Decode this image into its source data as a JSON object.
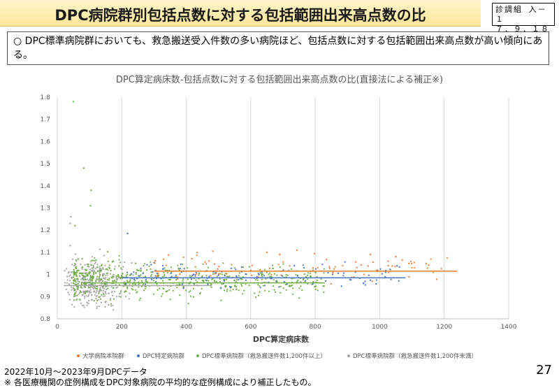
{
  "header": {
    "title": "DPC病院群別包括点数に対する包括範囲出来高点数の比",
    "doc_line1": "診調組 入－１",
    "doc_line2": "７．９．１８"
  },
  "summary": {
    "marker": "○",
    "text": "DPC標準病院群においても、救急搬送受入件数の多い病院ほど、包括点数に対する包括範囲出来高点数が高い傾向にある。"
  },
  "chart_data": {
    "type": "scatter",
    "title": "DPC算定病床数-包括点数に対する包括範囲出来高点数の比(直接法による補正※)",
    "xlabel": "DPC算定病床数",
    "ylabel": "",
    "xlim": [
      0,
      1400
    ],
    "ylim": [
      0.8,
      1.8
    ],
    "xticks": [
      "0",
      "200",
      "400",
      "600",
      "800",
      "1000",
      "1200",
      "1400"
    ],
    "yticks": [
      "0.8",
      "0.9",
      "1",
      "1.1",
      "1.2",
      "1.3",
      "1.4",
      "1.5",
      "1.6",
      "1.7",
      "1.8"
    ],
    "grid": "vertical",
    "legend_position": "bottom",
    "series": [
      {
        "name": "大学病院本院群",
        "color": "#ed7d31",
        "x_range": [
          290,
          1230
        ],
        "y_center": 1.03,
        "y_spread": 0.035,
        "mean_line": {
          "x": [
            300,
            1240
          ],
          "y": 1.015
        }
      },
      {
        "name": "DPC特定病院群",
        "color": "#4472c4",
        "x_range": [
          200,
          1080
        ],
        "y_center": 0.995,
        "y_spread": 0.03,
        "mean_line": {
          "x": [
            200,
            1080
          ],
          "y": 0.985
        }
      },
      {
        "name": "DPC標準病院群（救急搬送件数1,200件以上）",
        "color": "#70ad47",
        "x_range": [
          50,
          830
        ],
        "y_center": 0.975,
        "y_spread": 0.035,
        "mean_line": {
          "x": [
            80,
            830
          ],
          "y": 0.962
        }
      },
      {
        "name": "DPC標準病院群（救急搬送件数1,200件未満）",
        "color": "#a5a5a5",
        "x_range": [
          20,
          400
        ],
        "y_center": 0.96,
        "y_spread": 0.045,
        "mean_line": {
          "x": [
            20,
            480
          ],
          "y": 0.95
        }
      }
    ],
    "outliers": [
      {
        "x": 50,
        "y": 1.78,
        "series": 2
      },
      {
        "x": 82,
        "y": 1.48,
        "series": 2
      },
      {
        "x": 105,
        "y": 1.38,
        "series": 2
      },
      {
        "x": 103,
        "y": 1.31,
        "series": 2
      },
      {
        "x": 42,
        "y": 1.26,
        "series": 3
      },
      {
        "x": 40,
        "y": 1.23,
        "series": 3
      },
      {
        "x": 55,
        "y": 1.22,
        "series": 2
      },
      {
        "x": 218,
        "y": 1.185,
        "series": 1
      },
      {
        "x": 40,
        "y": 1.13,
        "series": 3
      },
      {
        "x": 650,
        "y": 1.1,
        "series": 0
      },
      {
        "x": 690,
        "y": 1.09,
        "series": 0
      },
      {
        "x": 1050,
        "y": 1.08,
        "series": 0
      }
    ]
  },
  "footer": {
    "line1": "2022年10月～2023年9月DPCデータ",
    "line2": "※ 各医療機関の症例構成をDPC対象病院の平均的な症例構成により補正したもの。",
    "page": "27"
  }
}
